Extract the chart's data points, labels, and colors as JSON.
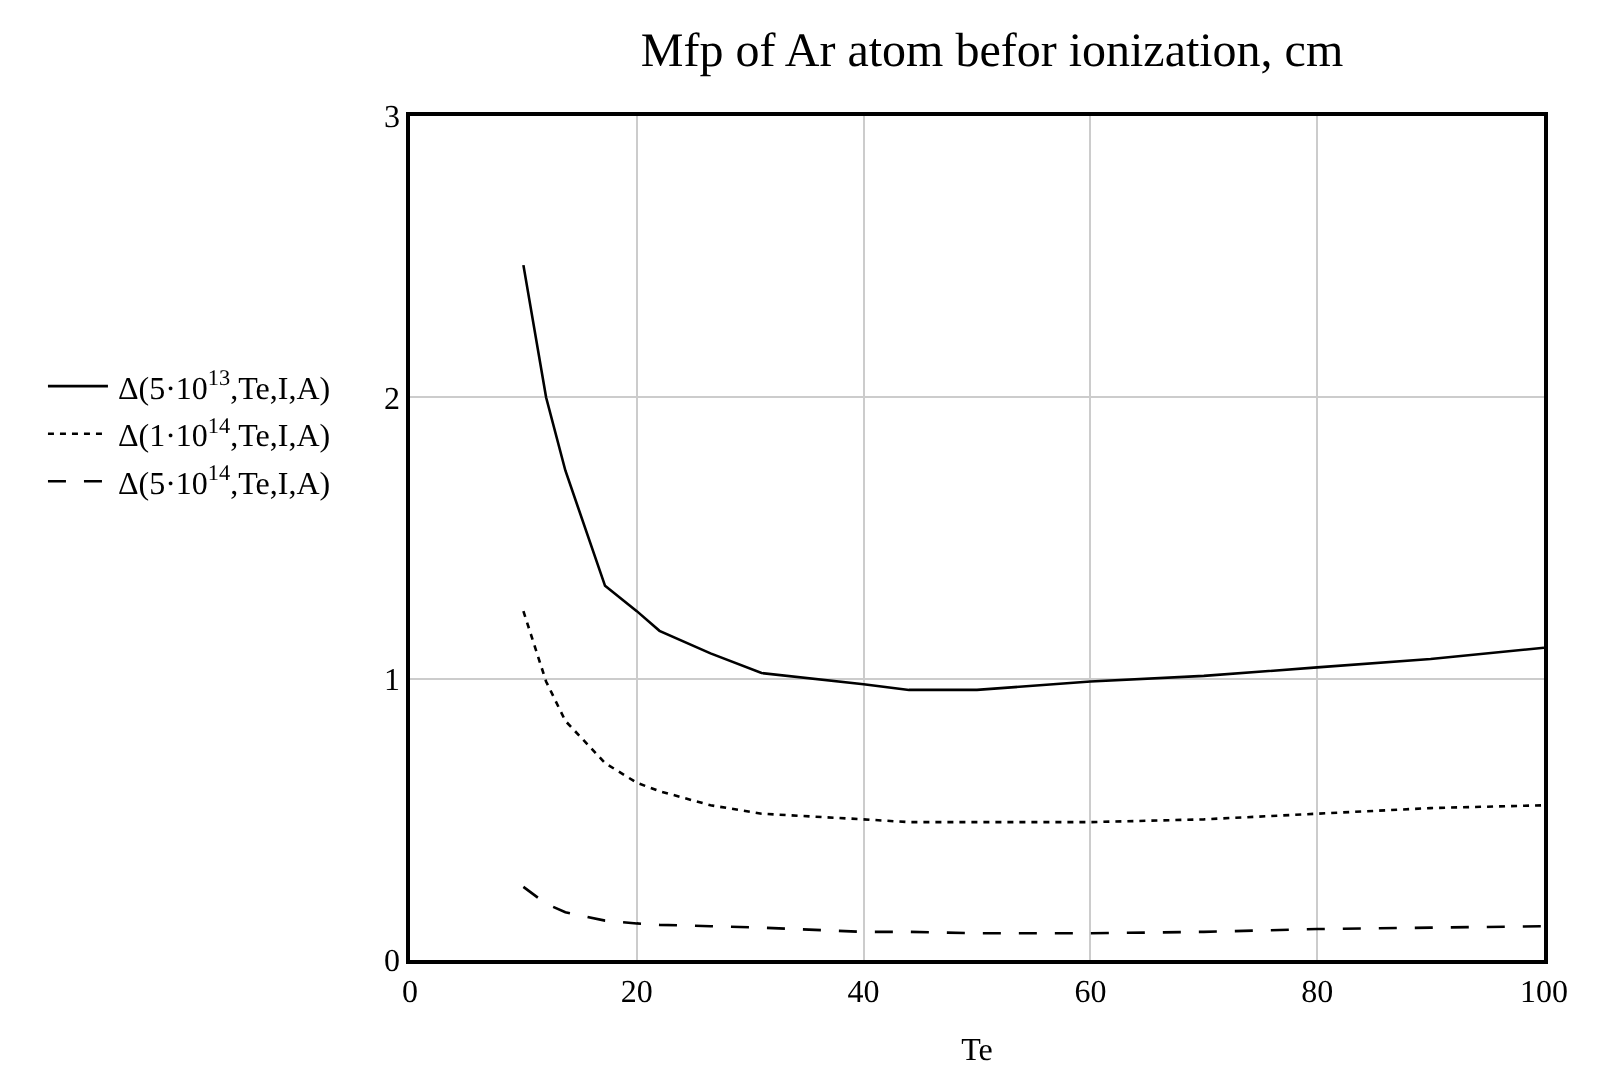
{
  "chart_data": {
    "type": "line",
    "title": "Mfp of Ar atom befor ionization, cm",
    "xlabel": "Te",
    "x": [
      10,
      12,
      13.7,
      17.2,
      20,
      22,
      26.5,
      31,
      40,
      44,
      50,
      60,
      70,
      80,
      90,
      100
    ],
    "series": [
      {
        "name": "Δ(5·10$^{13}$,Te,I,A)",
        "color": "#000000",
        "line_style": "solid",
        "values": [
          2.47,
          2.0,
          1.74,
          1.33,
          1.24,
          1.17,
          1.09,
          1.02,
          0.98,
          0.96,
          0.96,
          0.99,
          1.01,
          1.04,
          1.07,
          1.11
        ]
      },
      {
        "name": "Δ(1·10$^{14}$,Te,I,A)",
        "color": "#000000",
        "line_style": "dotted",
        "values": [
          1.24,
          0.99,
          0.85,
          0.7,
          0.63,
          0.6,
          0.55,
          0.52,
          0.5,
          0.49,
          0.49,
          0.49,
          0.5,
          0.52,
          0.54,
          0.55
        ]
      },
      {
        "name": "Δ(5·10$^{14}$,Te,I,A)",
        "color": "#000000",
        "line_style": "dashed",
        "values": [
          0.26,
          0.2,
          0.17,
          0.14,
          0.13,
          0.125,
          0.12,
          0.115,
          0.1,
          0.1,
          0.095,
          0.095,
          0.1,
          0.11,
          0.115,
          0.12
        ]
      }
    ],
    "xlim": [
      0,
      100
    ],
    "xticks": [
      0,
      20,
      40,
      60,
      80,
      100
    ],
    "ylim": [
      0,
      3
    ],
    "yticks": [
      0,
      1,
      2,
      3
    ],
    "grid": true,
    "legend": "left",
    "marker": "none"
  }
}
